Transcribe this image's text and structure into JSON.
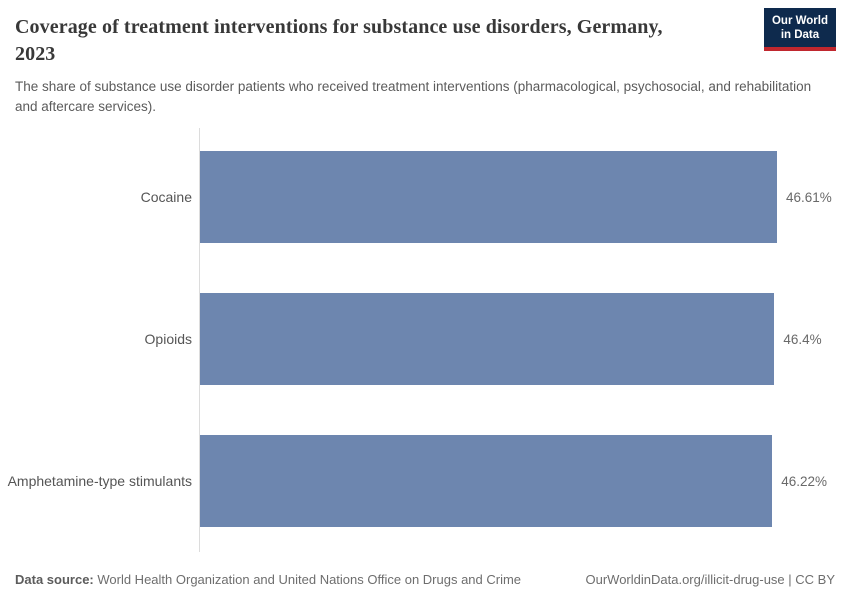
{
  "header": {
    "title": "Coverage of treatment interventions for substance use disorders, Germany, 2023",
    "subtitle": "The share of substance use disorder patients who received treatment interventions (pharmacological, psychosocial, and rehabilitation and aftercare services)."
  },
  "logo": {
    "line1": "Our World",
    "line2": "in Data",
    "bg_color": "#0e2a4d",
    "accent_color": "#c0272e"
  },
  "chart_data": {
    "type": "bar",
    "orientation": "horizontal",
    "title": "Coverage of treatment interventions for substance use disorders, Germany, 2023",
    "categories": [
      "Cocaine",
      "Opioids",
      "Amphetamine-type stimulants"
    ],
    "values": [
      46.61,
      46.4,
      46.22
    ],
    "value_labels": [
      "46.61%",
      "46.4%",
      "46.22%"
    ],
    "unit": "%",
    "bar_color": "#6d86af",
    "xlim": [
      0,
      46.61
    ],
    "grid": false,
    "legend": false
  },
  "footer": {
    "source_label": "Data source:",
    "source_text": " World Health Organization and United Nations Office on Drugs and Crime",
    "link_text": "OurWorldinData.org/illicit-drug-use | CC BY"
  }
}
